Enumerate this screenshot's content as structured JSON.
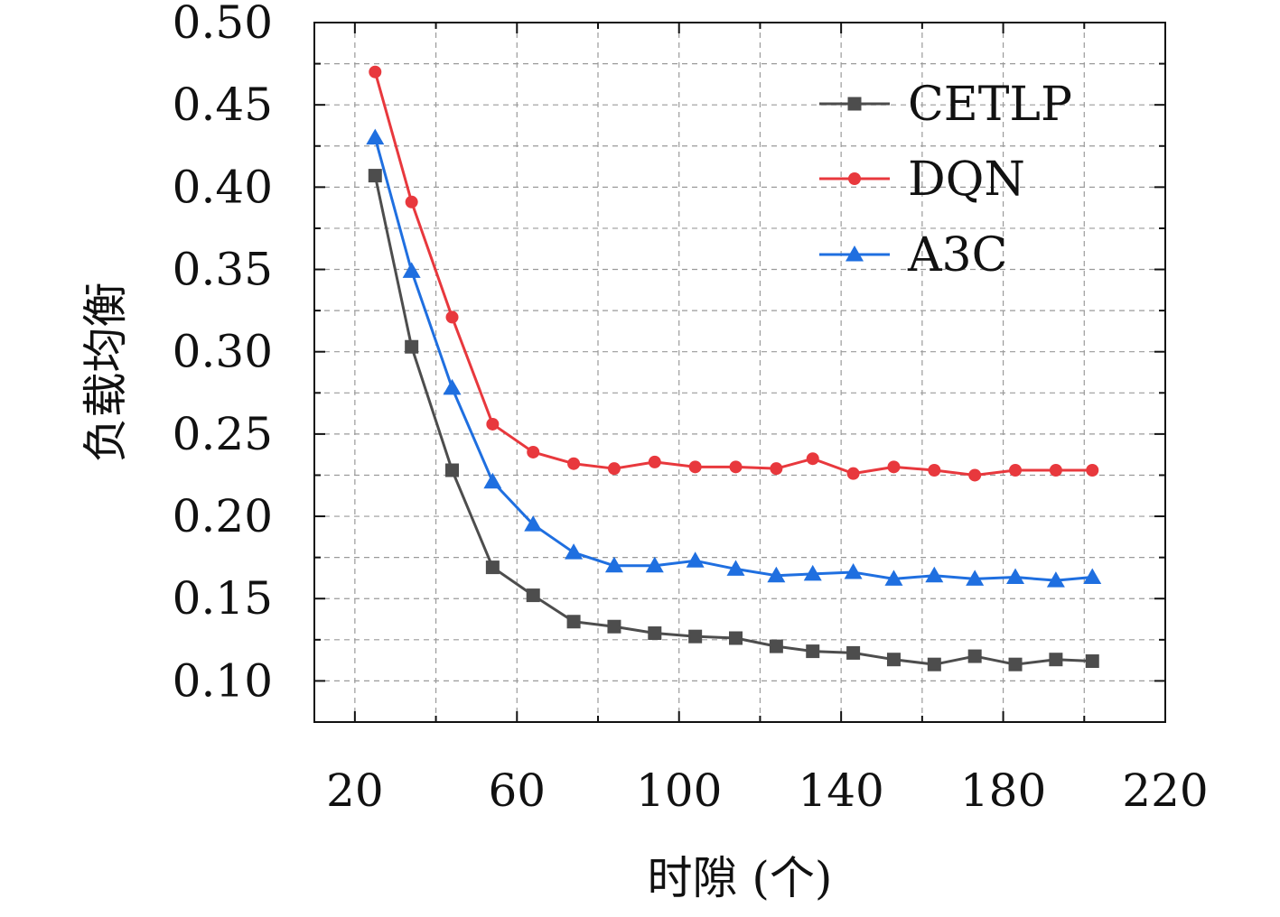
{
  "chart_data": {
    "type": "line",
    "title": "",
    "xlabel": "时隙 (个)",
    "ylabel": "负载均衡",
    "xlim": [
      10,
      220
    ],
    "ylim": [
      0.075,
      0.5
    ],
    "xticks": [
      20,
      60,
      100,
      140,
      180,
      220
    ],
    "yticks": [
      0.1,
      0.15,
      0.2,
      0.25,
      0.3,
      0.35,
      0.4,
      0.45,
      0.5
    ],
    "xtick_labels": [
      "20",
      "60",
      "100",
      "140",
      "180",
      "220"
    ],
    "ytick_labels": [
      "0.10",
      "0.15",
      "0.20",
      "0.25",
      "0.30",
      "0.35",
      "0.40",
      "0.45",
      "0.50"
    ],
    "grid": true,
    "legend_position": "top-right",
    "x": [
      25,
      34,
      44,
      54,
      64,
      74,
      84,
      94,
      104,
      114,
      124,
      133,
      143,
      153,
      163,
      173,
      183,
      193,
      202
    ],
    "series": [
      {
        "name": "CETLP",
        "color": "#4d4d4d",
        "marker": "square",
        "values": [
          0.407,
          0.303,
          0.228,
          0.169,
          0.152,
          0.136,
          0.133,
          0.129,
          0.127,
          0.126,
          0.121,
          0.118,
          0.117,
          0.113,
          0.11,
          0.115,
          0.11,
          0.113,
          0.112
        ]
      },
      {
        "name": "DQN",
        "color": "#e8383d",
        "marker": "circle",
        "values": [
          0.47,
          0.391,
          0.321,
          0.256,
          0.239,
          0.232,
          0.229,
          0.233,
          0.23,
          0.23,
          0.229,
          0.235,
          0.226,
          0.23,
          0.228,
          0.225,
          0.228,
          0.228,
          0.228
        ]
      },
      {
        "name": "A3C",
        "color": "#1f6fe0",
        "marker": "triangle",
        "values": [
          0.43,
          0.349,
          0.278,
          0.221,
          0.195,
          0.178,
          0.17,
          0.17,
          0.173,
          0.168,
          0.164,
          0.165,
          0.166,
          0.162,
          0.164,
          0.162,
          0.163,
          0.161,
          0.163
        ]
      }
    ]
  }
}
